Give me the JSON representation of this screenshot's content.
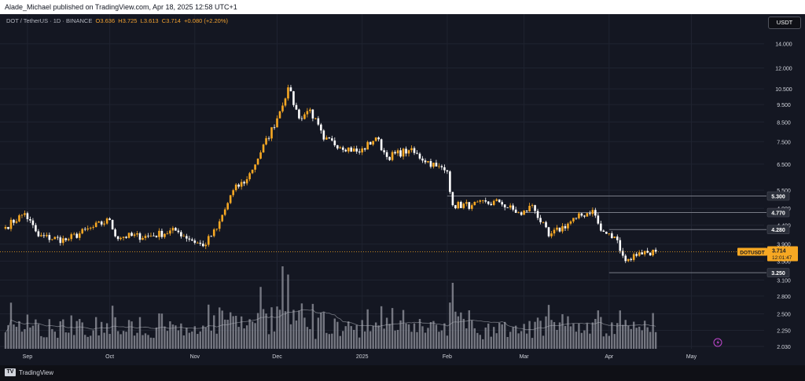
{
  "header": {
    "published_text": "Alade_Michael published on TradingView.com, Apr 18, 2025 12:58 UTC+1"
  },
  "legend": {
    "symbol": "DOT / TetherUS · 1D · BINANCE",
    "open": "O3.636",
    "high": "H3.725",
    "low": "L3.613",
    "close": "C3.714",
    "change": "+0.080 (+2.20%)"
  },
  "currency_button": "USDT",
  "footer": {
    "brand": "TradingView",
    "logo_text": "TV"
  },
  "price_label": {
    "symbol": "DOTUSDT",
    "price": "3.714",
    "countdown": "12:01:47"
  },
  "colors": {
    "up": "#f7a823",
    "down": "#ffffff",
    "background": "#141722",
    "grid": "#1f2330",
    "volume": "#9598a1",
    "level_line": "#787b86",
    "price_tag": "#f7a823"
  },
  "chart_data": {
    "type": "candlestick",
    "y_scale": "log",
    "ylim": [
      2.0,
      15.3
    ],
    "y_ticks": [
      "14.000",
      "12.000",
      "10.500",
      "9.500",
      "8.500",
      "7.500",
      "6.500",
      "5.500",
      "4.900",
      "4.400",
      "3.900",
      "3.500",
      "3.100",
      "2.800",
      "2.500",
      "2.250",
      "2.030"
    ],
    "x_ticks": [
      "Sep",
      "Oct",
      "Nov",
      "Dec",
      "2025",
      "Feb",
      "Mar",
      "Apr",
      "May"
    ],
    "levels": [
      {
        "label": "5.300",
        "value": 5.3,
        "from_label": "Feb"
      },
      {
        "label": "4.770",
        "value": 4.77,
        "from_label": "Mar"
      },
      {
        "label": "4.280",
        "value": 4.28,
        "from_label": "Apr"
      },
      {
        "label": "3.250",
        "value": 3.25,
        "from_label": "Apr"
      }
    ],
    "current_price": 3.714,
    "anchors": [
      {
        "date": "Aug 24",
        "price": 4.35
      },
      {
        "date": "Aug 31",
        "price": 4.75
      },
      {
        "date": "Sep 5",
        "price": 4.1
      },
      {
        "date": "Sep 15",
        "price": 4.0
      },
      {
        "date": "Sep 25",
        "price": 4.35
      },
      {
        "date": "Oct 1",
        "price": 4.55
      },
      {
        "date": "Oct 3",
        "price": 4.1
      },
      {
        "date": "Oct 15",
        "price": 4.1
      },
      {
        "date": "Oct 25",
        "price": 4.25
      },
      {
        "date": "Nov 4",
        "price": 3.85
      },
      {
        "date": "Nov 9",
        "price": 4.3
      },
      {
        "date": "Nov 15",
        "price": 5.5
      },
      {
        "date": "Nov 20",
        "price": 5.9
      },
      {
        "date": "Nov 25",
        "price": 7.0
      },
      {
        "date": "Dec 1",
        "price": 8.7
      },
      {
        "date": "Dec 5",
        "price": 10.6
      },
      {
        "date": "Dec 9",
        "price": 8.7
      },
      {
        "date": "Dec 13",
        "price": 9.2
      },
      {
        "date": "Dec 18",
        "price": 7.6
      },
      {
        "date": "Dec 31",
        "price": 7.0
      },
      {
        "date": "Jan 6",
        "price": 7.7
      },
      {
        "date": "Jan 10",
        "price": 6.8
      },
      {
        "date": "Jan 18",
        "price": 7.1
      },
      {
        "date": "Jan 28",
        "price": 6.4
      },
      {
        "date": "Feb 1",
        "price": 6.2
      },
      {
        "date": "Feb 3",
        "price": 5.0
      },
      {
        "date": "Feb 10",
        "price": 5.0
      },
      {
        "date": "Feb 20",
        "price": 5.1
      },
      {
        "date": "Feb 28",
        "price": 4.7
      },
      {
        "date": "Mar 4",
        "price": 5.0
      },
      {
        "date": "Mar 10",
        "price": 4.1
      },
      {
        "date": "Mar 20",
        "price": 4.6
      },
      {
        "date": "Mar 26",
        "price": 4.85
      },
      {
        "date": "Mar 29",
        "price": 4.25
      },
      {
        "date": "Apr 4",
        "price": 4.0
      },
      {
        "date": "Apr 7",
        "price": 3.5
      },
      {
        "date": "Apr 12",
        "price": 3.7
      },
      {
        "date": "Apr 18",
        "price": 3.714
      }
    ],
    "volume_spikes": [
      {
        "date": "Nov 25",
        "rel": 0.75
      },
      {
        "date": "Dec 3",
        "rel": 1.0
      },
      {
        "date": "Dec 5",
        "rel": 0.9
      },
      {
        "date": "Dec 10",
        "rel": 0.55
      },
      {
        "date": "Feb 3",
        "rel": 0.8
      },
      {
        "date": "Feb 4",
        "rel": 0.45
      },
      {
        "date": "Mar 11",
        "rel": 0.35
      },
      {
        "date": "Apr 7",
        "rel": 0.35
      }
    ]
  }
}
